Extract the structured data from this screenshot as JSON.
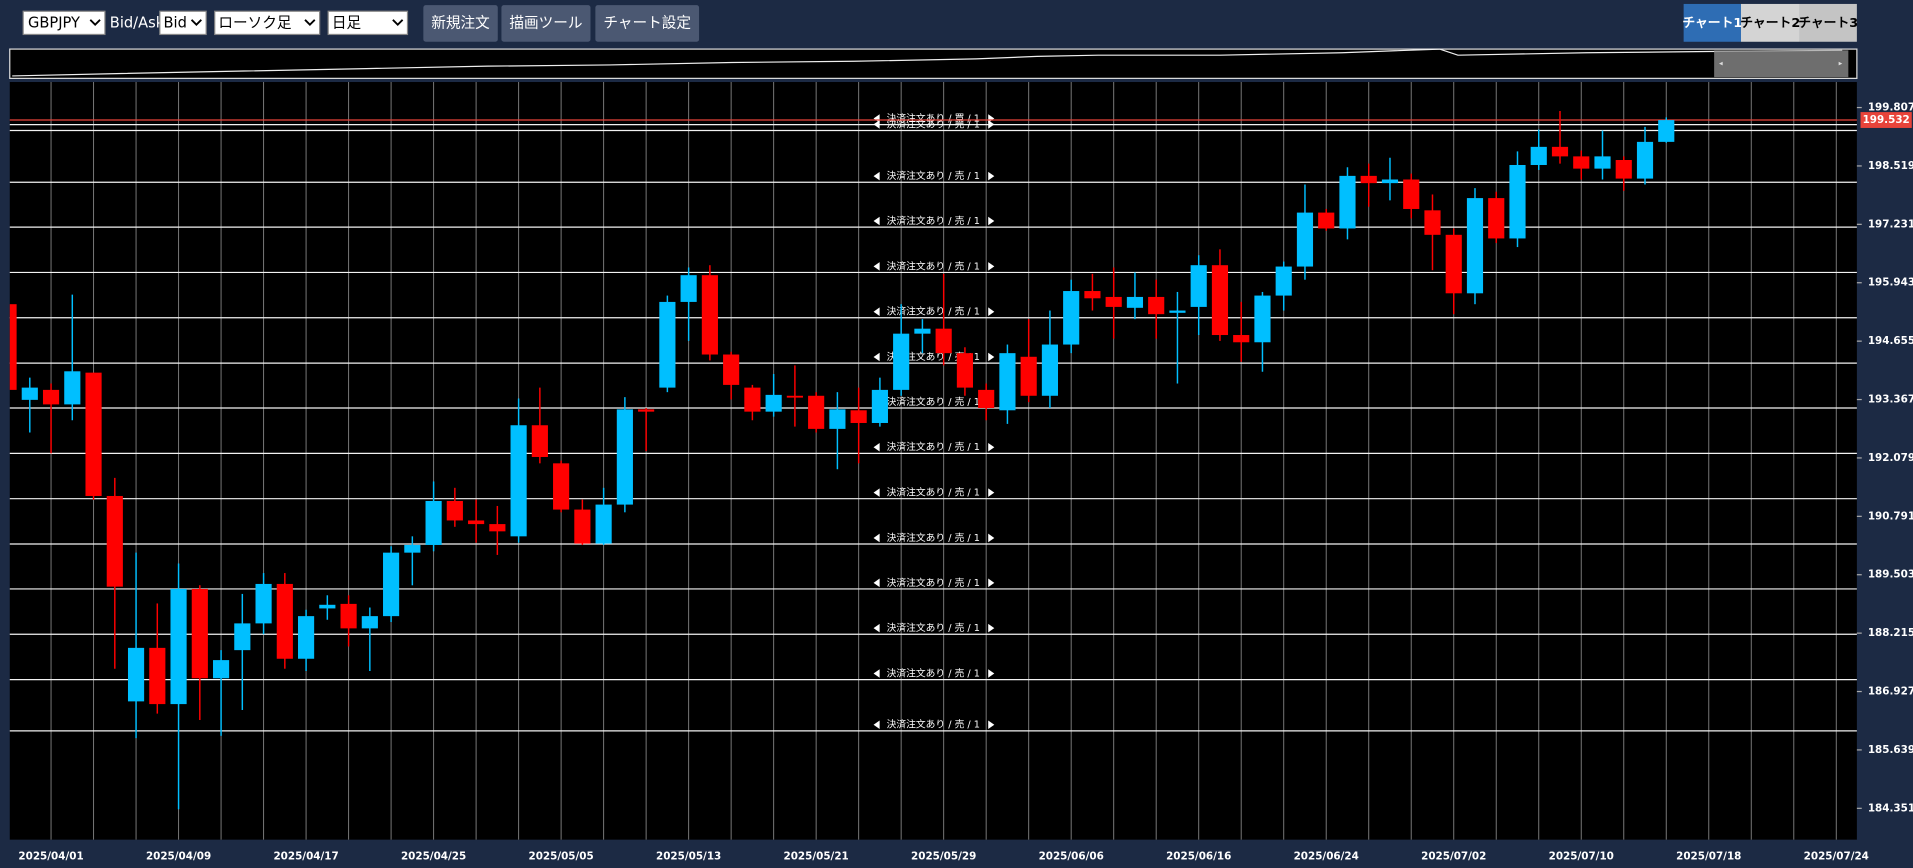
{
  "toolbar": {
    "symbol": "GBPJPY",
    "bid_ask_label": "Bid/Ask",
    "bid_ask": "Bid",
    "chart_type": "ローソク足",
    "period": "日足",
    "buttons": [
      "新規注文",
      "描画ツール",
      "チャート設定"
    ],
    "tabs": [
      "チャート1",
      "チャート2",
      "チャート3"
    ]
  },
  "chart_data": {
    "type": "candlestick",
    "categories": [
      null,
      null,
      "2025/04/01",
      null,
      null,
      null,
      null,
      null,
      "2025/04/09",
      null,
      null,
      null,
      null,
      null,
      "2025/04/17",
      null,
      null,
      null,
      null,
      null,
      "2025/04/25",
      null,
      null,
      null,
      null,
      null,
      "2025/05/05",
      null,
      null,
      null,
      null,
      null,
      "2025/05/13",
      null,
      null,
      null,
      null,
      null,
      "2025/05/21",
      null,
      null,
      null,
      null,
      null,
      "2025/05/29",
      null,
      null,
      null,
      null,
      null,
      "2025/06/06",
      null,
      null,
      null,
      null,
      null,
      "2025/06/16",
      null,
      null,
      null,
      null,
      null,
      "2025/06/24",
      null,
      null,
      null,
      null,
      null,
      "2025/07/02",
      null,
      null,
      null,
      null,
      null,
      "2025/07/10",
      null,
      null,
      null,
      null,
      null,
      "2025/07/18",
      null,
      null,
      null,
      null,
      null,
      "2025/07/24"
    ],
    "open": [
      195.47,
      193.36,
      193.58,
      193.26,
      193.96,
      191.24,
      186.71,
      187.89,
      186.65,
      189.19,
      187.22,
      187.84,
      188.43,
      189.3,
      187.65,
      188.76,
      188.86,
      188.32,
      188.59,
      189.99,
      190.16,
      191.13,
      190.7,
      190.62,
      190.35,
      192.8,
      191.96,
      190.94,
      190.19,
      191.05,
      193.15,
      193.63,
      195.52,
      196.11,
      194.36,
      193.63,
      193.1,
      193.45,
      193.45,
      192.72,
      193.13,
      192.85,
      193.58,
      194.82,
      194.93,
      194.39,
      193.58,
      193.13,
      194.31,
      193.45,
      194.58,
      195.76,
      195.63,
      195.39,
      195.63,
      195.28,
      195.41,
      196.33,
      194.79,
      194.63,
      195.66,
      196.3,
      197.49,
      197.14,
      198.3,
      198.14,
      198.22,
      197.54,
      197.0,
      195.71,
      197.81,
      196.92,
      198.54,
      198.94,
      198.73,
      198.46,
      198.65,
      198.24,
      199.05,
      null,
      null,
      null,
      null,
      null,
      null,
      null,
      null
    ],
    "high": [
      195.5,
      193.85,
      193.72,
      195.68,
      193.96,
      191.64,
      189.99,
      188.87,
      189.75,
      189.27,
      187.84,
      189.08,
      189.54,
      189.54,
      188.73,
      189.05,
      189.05,
      188.78,
      190.13,
      190.35,
      191.56,
      191.42,
      191.16,
      191.02,
      193.39,
      193.63,
      192.02,
      191.16,
      191.42,
      193.42,
      193.18,
      195.66,
      196.28,
      196.33,
      194.42,
      193.69,
      193.93,
      194.12,
      193.53,
      193.53,
      193.63,
      193.85,
      195.47,
      195.14,
      196.14,
      194.52,
      193.72,
      194.58,
      195.14,
      195.33,
      196.01,
      196.14,
      196.28,
      196.17,
      196.01,
      195.74,
      196.55,
      196.68,
      195.52,
      195.74,
      196.41,
      198.11,
      197.57,
      198.49,
      198.57,
      198.7,
      198.35,
      197.89,
      197.14,
      198.03,
      197.95,
      198.84,
      199.32,
      199.73,
      198.86,
      199.3,
      198.73,
      199.38,
      199.59,
      null,
      null,
      null,
      null,
      null,
      null,
      null,
      null
    ],
    "low": [
      193.5,
      192.64,
      192.18,
      192.91,
      191.15,
      187.43,
      185.9,
      186.44,
      184.33,
      186.3,
      185.95,
      186.52,
      188.19,
      187.43,
      187.38,
      188.51,
      187.92,
      187.38,
      188.46,
      189.27,
      190.02,
      190.56,
      190.21,
      189.94,
      190.21,
      191.96,
      190.88,
      190.16,
      190.16,
      190.88,
      192.23,
      193.53,
      194.66,
      194.23,
      193.37,
      192.91,
      192.99,
      192.77,
      192.64,
      191.83,
      191.96,
      192.77,
      193.45,
      194.39,
      194.12,
      193.45,
      192.91,
      192.83,
      193.31,
      193.18,
      194.39,
      195.33,
      194.71,
      195.14,
      194.71,
      193.72,
      194.79,
      194.66,
      194.2,
      193.98,
      195.33,
      196.01,
      197.09,
      196.9,
      197.62,
      197.76,
      197.36,
      196.22,
      195.25,
      195.47,
      196.82,
      196.73,
      198.43,
      198.57,
      198.22,
      198.22,
      197.97,
      198.11,
      199.03,
      null,
      null,
      null,
      null,
      null,
      null,
      null,
      null
    ],
    "close": [
      193.58,
      193.63,
      193.26,
      193.99,
      191.24,
      189.24,
      187.89,
      186.65,
      189.19,
      187.22,
      187.62,
      188.43,
      189.3,
      187.65,
      188.59,
      188.84,
      188.32,
      188.59,
      189.99,
      190.16,
      191.13,
      190.7,
      190.62,
      190.46,
      192.8,
      192.1,
      190.94,
      190.19,
      191.05,
      193.15,
      193.1,
      195.52,
      196.11,
      194.36,
      193.69,
      193.1,
      193.47,
      193.42,
      192.72,
      193.15,
      192.85,
      193.58,
      194.82,
      194.93,
      194.39,
      193.63,
      193.18,
      194.39,
      193.45,
      194.58,
      195.76,
      195.6,
      195.41,
      195.63,
      195.25,
      195.33,
      196.33,
      194.79,
      194.63,
      195.66,
      196.3,
      197.49,
      197.14,
      198.3,
      198.14,
      198.22,
      197.57,
      197.0,
      195.71,
      197.81,
      196.92,
      198.54,
      198.94,
      198.73,
      198.46,
      198.73,
      198.24,
      199.05,
      199.53,
      null,
      null,
      null,
      null,
      null,
      null,
      null,
      null
    ],
    "up_color": "#00bfff",
    "down_color": "#ff0000",
    "ylim": [
      183.66,
      200.37
    ],
    "yticks": [
      199.807,
      198.519,
      197.231,
      195.943,
      194.655,
      193.367,
      192.079,
      190.791,
      189.503,
      188.215,
      186.927,
      185.639,
      184.351
    ],
    "xgrid": true,
    "price_line": {
      "value": 199.532,
      "color": "#e8433a"
    },
    "orders": [
      {
        "price": 199.43,
        "label": "決済注文あり / 買 / 1"
      },
      {
        "price": 199.3,
        "label": "決済注文あり / 売 / 1"
      },
      {
        "price": 198.16,
        "label": "決済注文あり / 売 / 1"
      },
      {
        "price": 197.17,
        "label": "決済注文あり / 売 / 1"
      },
      {
        "price": 196.17,
        "label": "決済注文あり / 売 / 1"
      },
      {
        "price": 195.17,
        "label": "決済注文あり / 売 / 1"
      },
      {
        "price": 194.17,
        "label": "決済注文あり / 売 / 1"
      },
      {
        "price": 193.18,
        "label": "決済注文あり / 売 / 1"
      },
      {
        "price": 192.18,
        "label": "決済注文あり / 売 / 1"
      },
      {
        "price": 191.18,
        "label": "決済注文あり / 売 / 1"
      },
      {
        "price": 190.18,
        "label": "決済注文あり / 売 / 1"
      },
      {
        "price": 189.19,
        "label": "決済注文あり / 売 / 1"
      },
      {
        "price": 188.19,
        "label": "決済注文あり / 売 / 1"
      },
      {
        "price": 187.19,
        "label": "決済注文あり / 売 / 1"
      },
      {
        "price": 186.06,
        "label": "決済注文あり / 売 / 1"
      }
    ]
  }
}
